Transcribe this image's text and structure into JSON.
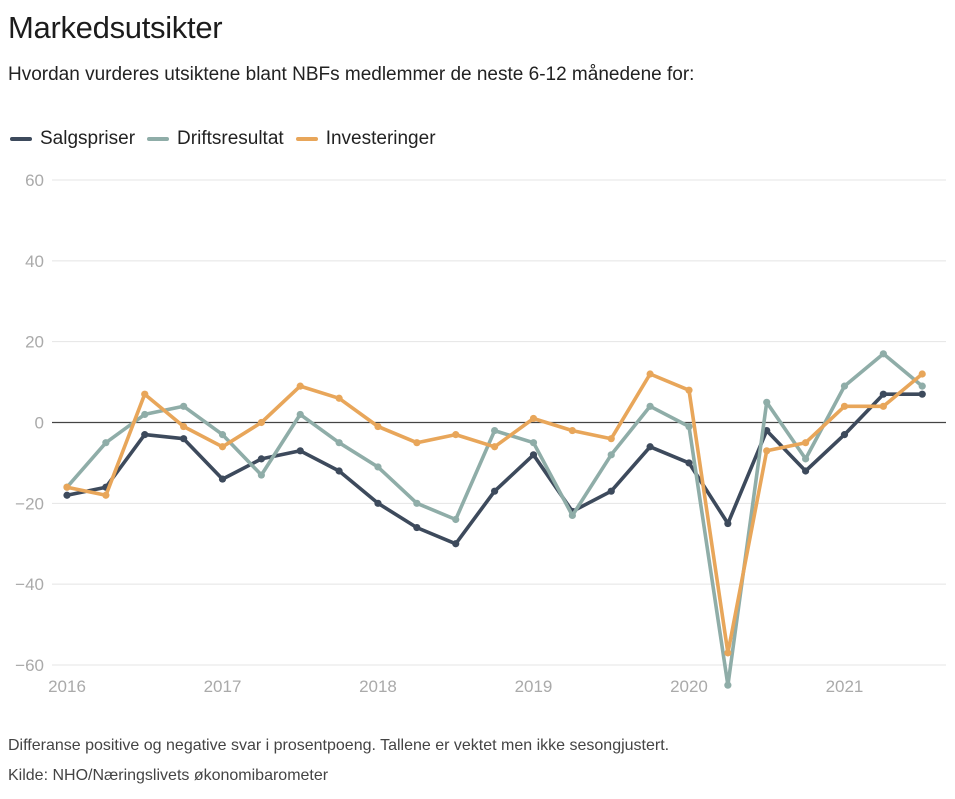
{
  "title": "Markedsutsikter",
  "subtitle": "Hvordan vurderes utsiktene blant NBFs medlemmer de neste 6-12 månedene for:",
  "note": "Differanse positive og negative svar i prosentpoeng. Tallene er vektet men ikke sesongjustert.",
  "source": "Kilde: NHO/Næringslivets økonomibarometer",
  "chart_data": {
    "type": "line",
    "ylim": [
      -60,
      60
    ],
    "yticks": [
      60,
      40,
      20,
      0,
      -20,
      -40,
      -60
    ],
    "ytick_labels": [
      "60",
      "40",
      "20",
      "0",
      "−20",
      "−40",
      "−60"
    ],
    "xticks": [
      2016,
      2017,
      2018,
      2019,
      2020,
      2021
    ],
    "xtick_labels": [
      "2016",
      "2017",
      "2018",
      "2019",
      "2020",
      "2021"
    ],
    "xlim": [
      2016,
      2021.55
    ],
    "x": [
      2016.0,
      2016.25,
      2016.5,
      2016.75,
      2017.0,
      2017.25,
      2017.5,
      2017.75,
      2018.0,
      2018.25,
      2018.5,
      2018.75,
      2019.0,
      2019.25,
      2019.5,
      2019.75,
      2020.0,
      2020.25,
      2020.5,
      2020.75,
      2021.0,
      2021.25,
      2021.5
    ],
    "grid": true,
    "legend_position": "top-left",
    "series": [
      {
        "name": "Salgspriser",
        "color": "#3d4a5c",
        "values": [
          -18,
          -16,
          -3,
          -4,
          -14,
          -9,
          -7,
          -12,
          -20,
          -26,
          -30,
          -17,
          -8,
          -22,
          -17,
          -6,
          -10,
          -25,
          -2,
          -12,
          -3,
          7,
          7
        ]
      },
      {
        "name": "Driftsresultat",
        "color": "#8fada8",
        "values": [
          -16,
          -5,
          2,
          4,
          -3,
          -13,
          2,
          -5,
          -11,
          -20,
          -24,
          -2,
          -5,
          -23,
          -8,
          4,
          -1,
          -65,
          5,
          -9,
          9,
          17,
          9
        ]
      },
      {
        "name": "Investeringer",
        "color": "#e8a65a",
        "values": [
          -16,
          -18,
          7,
          -1,
          -6,
          0,
          9,
          6,
          -1,
          -5,
          -3,
          -6,
          1,
          -2,
          -4,
          12,
          8,
          -57,
          -7,
          -5,
          4,
          4,
          12
        ]
      }
    ]
  }
}
